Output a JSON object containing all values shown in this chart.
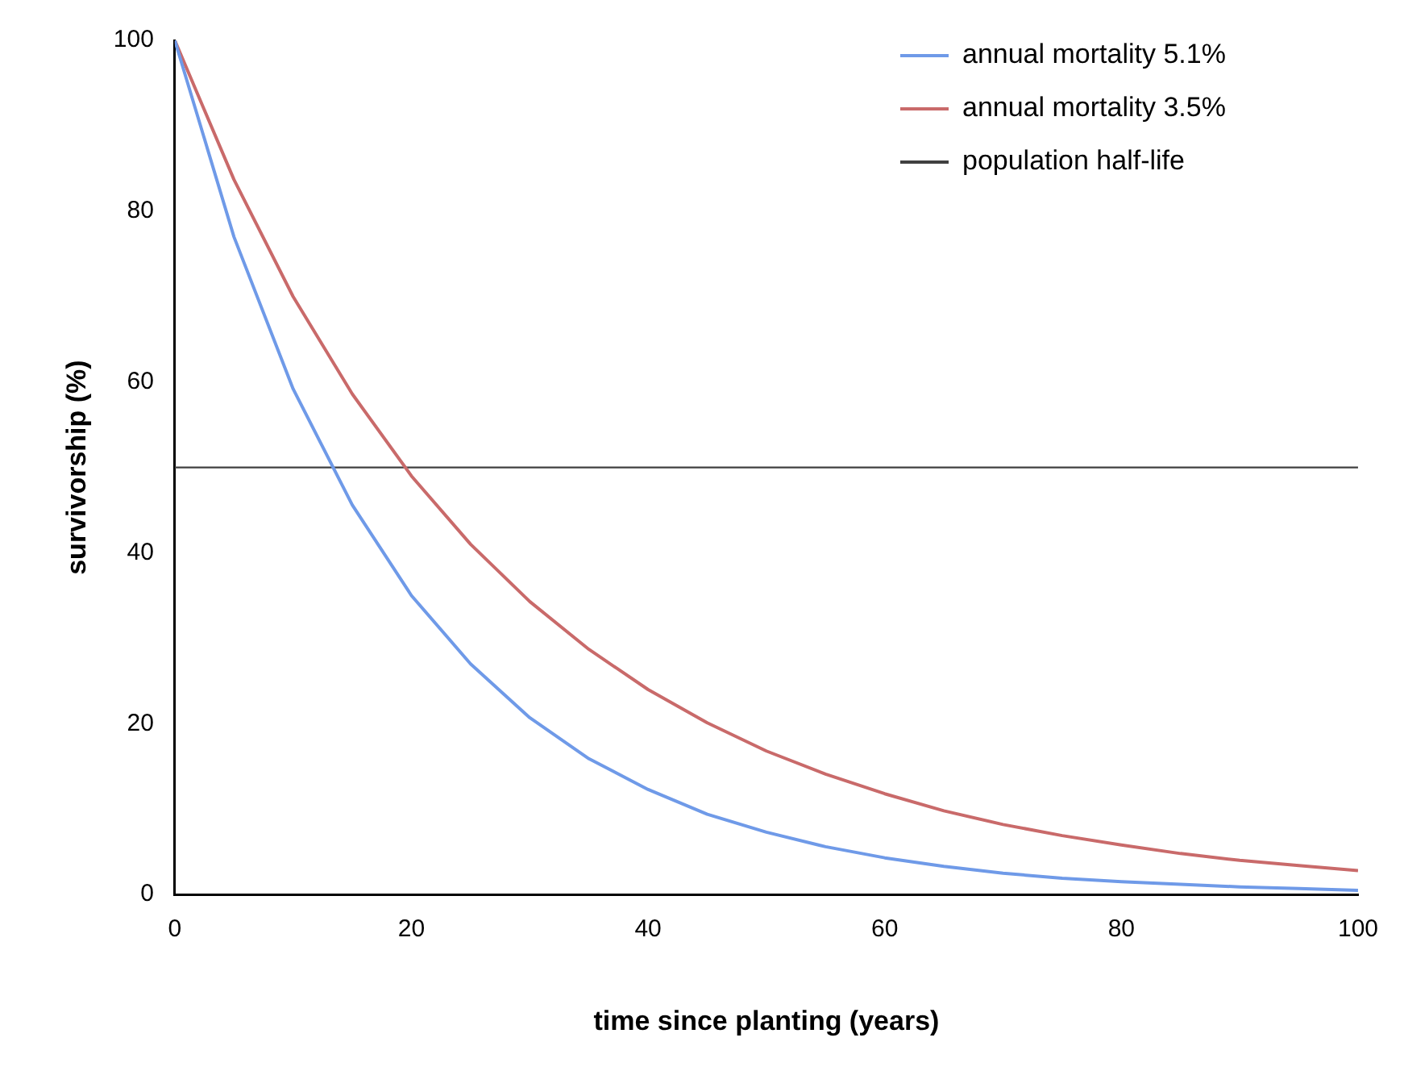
{
  "chart_data": {
    "type": "line",
    "xlabel": "time since planting (years)",
    "ylabel": "survivorship (%)",
    "x": [
      0,
      5,
      10,
      15,
      20,
      25,
      30,
      35,
      40,
      45,
      50,
      55,
      60,
      65,
      70,
      75,
      80,
      85,
      90,
      95,
      100
    ],
    "series": [
      {
        "name": "annual mortality 5.1%",
        "color": "#6f9ae8",
        "values": [
          100,
          77,
          59.2,
          45.6,
          35.0,
          27.0,
          20.7,
          15.9,
          12.3,
          9.4,
          7.3,
          5.6,
          4.3,
          3.3,
          2.5,
          1.9,
          1.5,
          1.2,
          0.9,
          0.7,
          0.5
        ]
      },
      {
        "name": "annual mortality 3.5%",
        "color": "#c96a6a",
        "values": [
          100,
          83.7,
          70.0,
          58.6,
          49.0,
          41.0,
          34.3,
          28.7,
          24.0,
          20.1,
          16.8,
          14.1,
          11.8,
          9.8,
          8.2,
          6.9,
          5.8,
          4.8,
          4.0,
          3.4,
          2.8
        ]
      }
    ],
    "ref_lines": [
      {
        "axis": "y",
        "value": 50,
        "label": "population half-life",
        "color": "#404040"
      }
    ],
    "xlim": [
      0,
      100
    ],
    "xticks": [
      0,
      20,
      40,
      60,
      80,
      100
    ],
    "ylim": [
      0,
      100
    ],
    "yticks": [
      0,
      20,
      40,
      60,
      80,
      100
    ],
    "grid": false,
    "legend": "top right",
    "marker": "none",
    "line_style": "solid"
  }
}
